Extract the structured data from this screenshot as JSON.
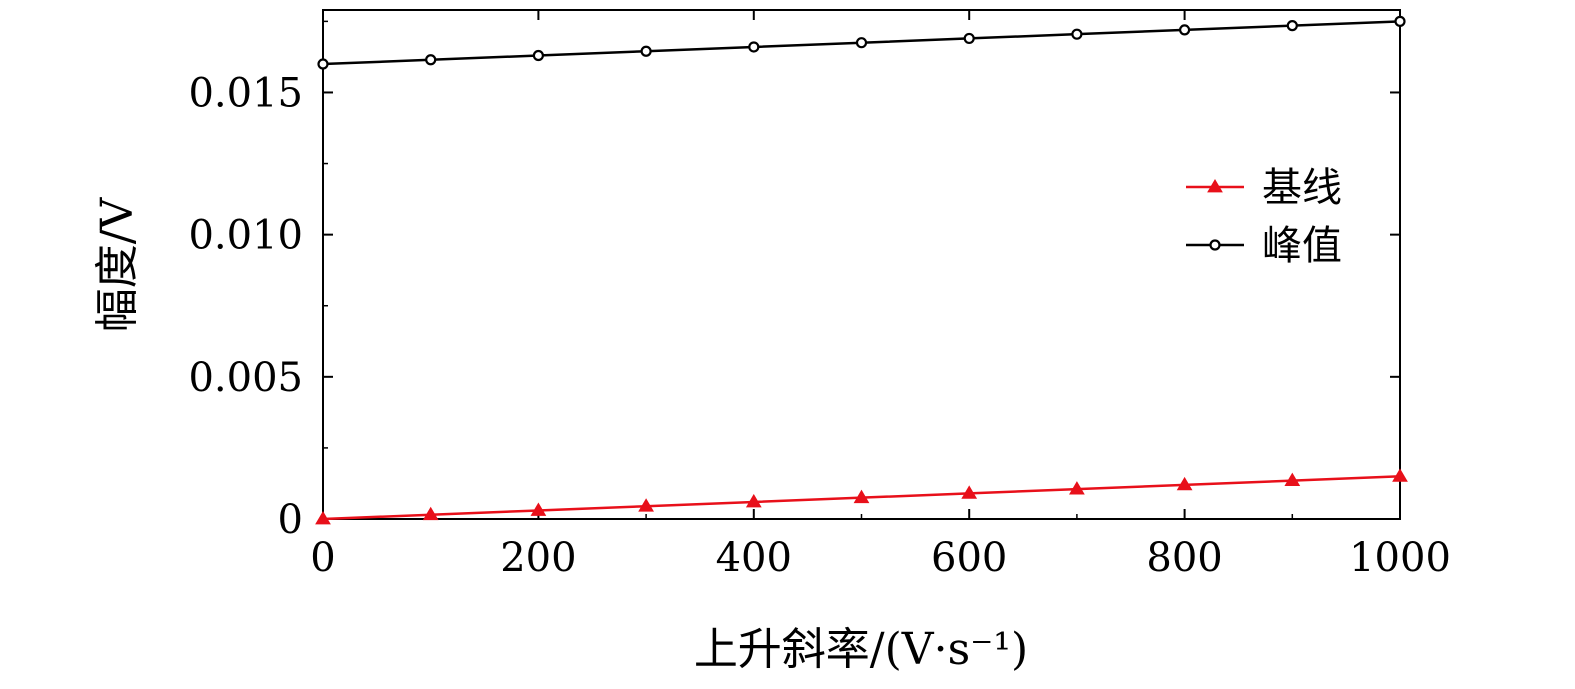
{
  "chart_data": {
    "type": "line",
    "title": "",
    "xlabel": "上升斜率/(V·s⁻¹)",
    "ylabel": "幅度/V",
    "xlim": [
      0,
      1000
    ],
    "ylim": [
      0,
      0.0179
    ],
    "xticks": [
      0,
      200,
      400,
      600,
      800,
      1000
    ],
    "xtick_labels": [
      "0",
      "200",
      "400",
      "600",
      "800",
      "1000"
    ],
    "yticks": [
      0,
      0.005,
      0.01,
      0.015
    ],
    "ytick_labels": [
      "0",
      "0.005",
      "0.010",
      "0.015"
    ],
    "grid": false,
    "legend_position": "right",
    "x": [
      0,
      100,
      200,
      300,
      400,
      500,
      600,
      700,
      800,
      900,
      1000
    ],
    "series": [
      {
        "name": "基线",
        "color": "#e8101a",
        "marker": "triangle",
        "values": [
          0.0,
          0.00015,
          0.0003,
          0.00045,
          0.0006,
          0.00075,
          0.0009,
          0.00105,
          0.0012,
          0.00135,
          0.0015
        ]
      },
      {
        "name": "峰值",
        "color": "#000000",
        "marker": "circle",
        "values": [
          0.016,
          0.01615,
          0.0163,
          0.01645,
          0.0166,
          0.01675,
          0.0169,
          0.01705,
          0.0172,
          0.01735,
          0.0175
        ]
      }
    ]
  }
}
